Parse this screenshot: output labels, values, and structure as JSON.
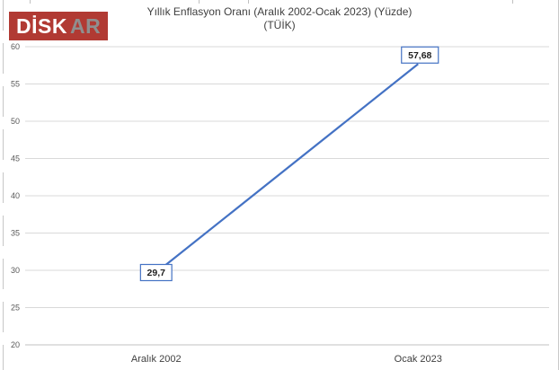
{
  "logo": {
    "primary": "DİSK",
    "secondary": "AR",
    "bg_color": "#b13a33",
    "primary_color": "#ffffff",
    "secondary_color": "#8f8f8f"
  },
  "title": {
    "line1": "Yıllık Enflasyon Oranı (Aralık 2002-Ocak 2023) (Yüzde)",
    "line2": "(TÜİK)"
  },
  "chart_data": {
    "type": "line",
    "title": "Yıllık Enflasyon Oranı (Aralık 2002-Ocak 2023) (Yüzde) (TÜİK)",
    "categories": [
      "Aralık 2002",
      "Ocak 2023"
    ],
    "values": [
      29.7,
      57.68
    ],
    "data_labels": [
      "29,7",
      "57,68"
    ],
    "data_label_positions": [
      "center",
      "above"
    ],
    "ylim": [
      20,
      60
    ],
    "yticks": [
      20,
      25,
      30,
      35,
      40,
      45,
      50,
      55,
      60
    ],
    "grid": true,
    "legend": "none",
    "colors": {
      "line": "#4472c4",
      "gridline": "#d9d9d9",
      "axis_line": "#c2c2c2",
      "tick_label": "#595959",
      "category_label": "#404040",
      "data_label_border": "#4472c4",
      "data_label_text": "#1f1f1f",
      "data_label_fill": "#ffffff"
    }
  }
}
